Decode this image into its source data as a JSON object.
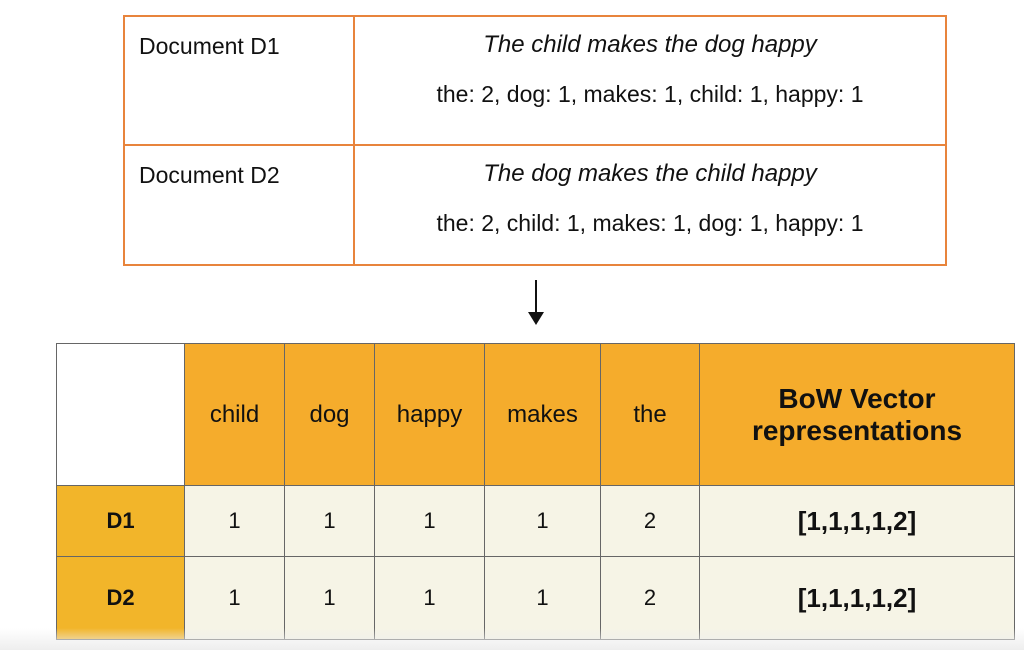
{
  "documents": [
    {
      "label": "Document D1",
      "sentence": "The child makes the dog happy",
      "counts": "the: 2, dog: 1, makes: 1, child: 1, happy: 1"
    },
    {
      "label": "Document D2",
      "sentence": "The dog makes the child happy",
      "counts": "the: 2, child: 1, makes: 1, dog: 1, happy: 1"
    }
  ],
  "matrix": {
    "headers": [
      "child",
      "dog",
      "happy",
      "makes",
      "the"
    ],
    "vector_header": "BoW Vector representations",
    "rows": [
      {
        "label": "D1",
        "values": [
          "1",
          "1",
          "1",
          "1",
          "2"
        ],
        "vector": "[1,1,1,1,2]"
      },
      {
        "label": "D2",
        "values": [
          "1",
          "1",
          "1",
          "1",
          "2"
        ],
        "vector": "[1,1,1,1,2]"
      }
    ]
  },
  "colors": {
    "border": "#e8843c",
    "header": "#f5ac2c",
    "row_label": "#f2b52a",
    "cell": "#f6f4e6"
  }
}
